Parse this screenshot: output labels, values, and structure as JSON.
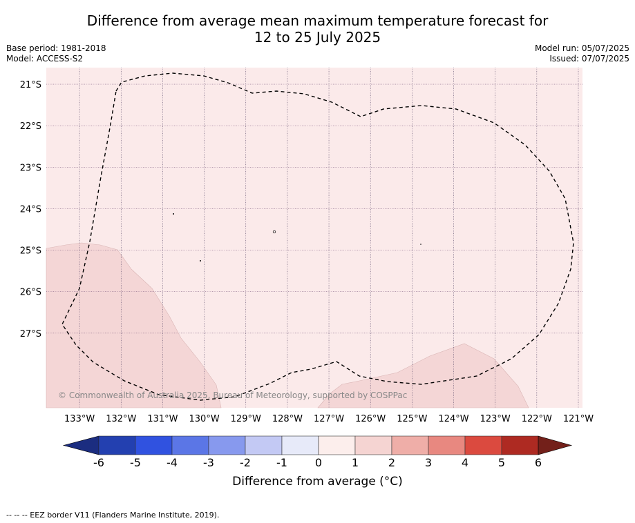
{
  "title": {
    "line1": "Difference from average mean maximum temperature forecast for",
    "line2": "12 to 25 July 2025"
  },
  "info_left": {
    "base_period": "Base period: 1981-2018",
    "model": "Model: ACCESS-S2"
  },
  "info_right": {
    "model_run": "Model run: 05/07/2025",
    "issued": "Issued: 07/07/2025"
  },
  "map": {
    "lat_labels": [
      "21°S",
      "22°S",
      "23°S",
      "24°S",
      "25°S",
      "26°S",
      "27°S"
    ],
    "lon_labels": [
      "133°W",
      "132°W",
      "131°W",
      "130°W",
      "129°W",
      "128°W",
      "127°W",
      "126°W",
      "125°W",
      "124°W",
      "123°W",
      "122°W",
      "121°W"
    ],
    "lon_extent": [
      -133.8,
      -120.9
    ],
    "lat_extent": [
      -20.6,
      -28.8
    ],
    "background_color": "#fbeaea",
    "warm_anomaly_color": "#f4d6d6",
    "copyright": "© Commonwealth of Australia 2025, Bureau of Meteorology, supported by COSPPac"
  },
  "colorbar": {
    "ticks": [
      "-6",
      "-5",
      "-4",
      "-3",
      "-2",
      "-1",
      "0",
      "1",
      "2",
      "3",
      "4",
      "5",
      "6"
    ],
    "colors": [
      "#2340b0",
      "#3052e0",
      "#5b76e6",
      "#8799ee",
      "#c3c9f4",
      "#e7eaf9",
      "#fceeec",
      "#f5d4d2",
      "#efaea8",
      "#e88880",
      "#db4a3f",
      "#ae2a22"
    ],
    "under_color": "#1b2d80",
    "over_color": "#73201a",
    "label": "Difference from average (°C)"
  },
  "footnote": "--  --  -- EEZ border V11 (Flanders Marine Institute, 2019)."
}
